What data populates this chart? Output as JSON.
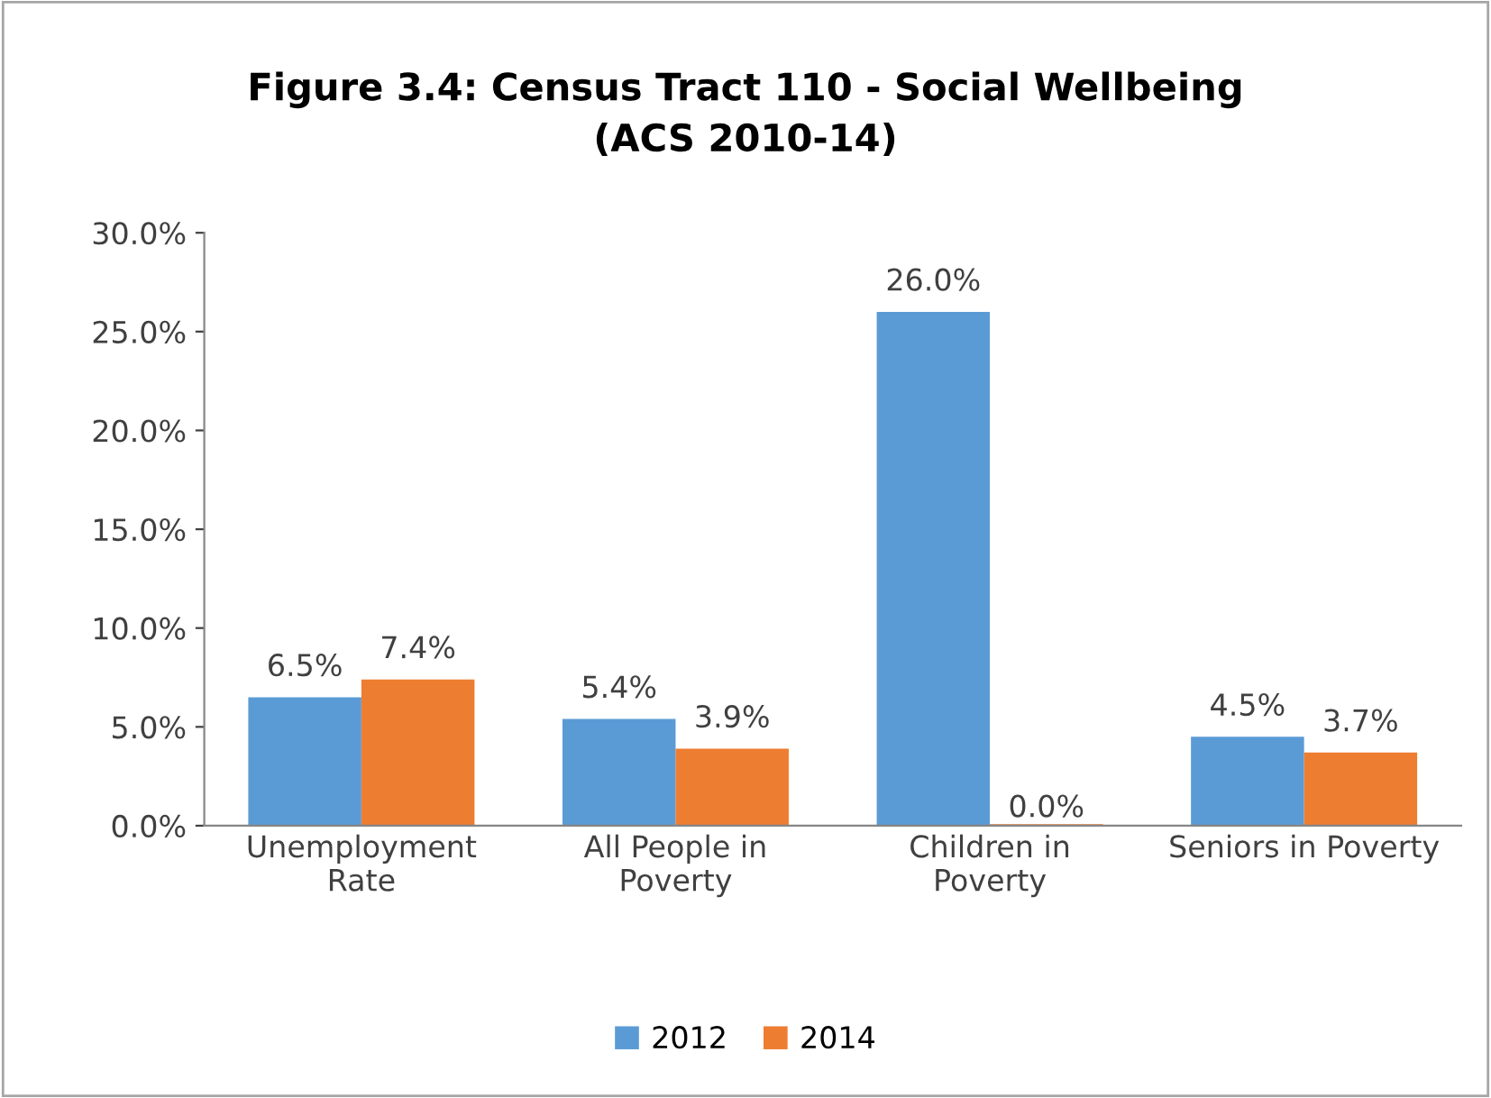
{
  "chart_data": {
    "type": "bar",
    "title": "Figure 3.4: Census Tract 110 - Social Wellbeing\n(ACS 2010-14)",
    "categories": [
      "Unemployment\nRate",
      "All People in\nPoverty",
      "Children in\nPoverty",
      "Seniors in Poverty"
    ],
    "series": [
      {
        "name": "2012",
        "color": "#5b9bd5",
        "values": [
          6.5,
          5.4,
          26.0,
          4.5
        ],
        "value_labels": [
          "6.5%",
          "5.4%",
          "26.0%",
          "4.5%"
        ]
      },
      {
        "name": "2014",
        "color": "#ed7d31",
        "values": [
          7.4,
          3.9,
          0.0,
          3.7
        ],
        "value_labels": [
          "7.4%",
          "3.9%",
          "0.0%",
          "3.7%"
        ]
      }
    ],
    "ylim": [
      0,
      30
    ],
    "yticks": [
      {
        "value": 0,
        "label": "0.0%"
      },
      {
        "value": 5,
        "label": "5.0%"
      },
      {
        "value": 10,
        "label": "10.0%"
      },
      {
        "value": 15,
        "label": "15.0%"
      },
      {
        "value": 20,
        "label": "20.0%"
      },
      {
        "value": 25,
        "label": "25.0%"
      },
      {
        "value": 30,
        "label": "30.0%"
      }
    ],
    "grid": false,
    "legend": "bottom"
  }
}
